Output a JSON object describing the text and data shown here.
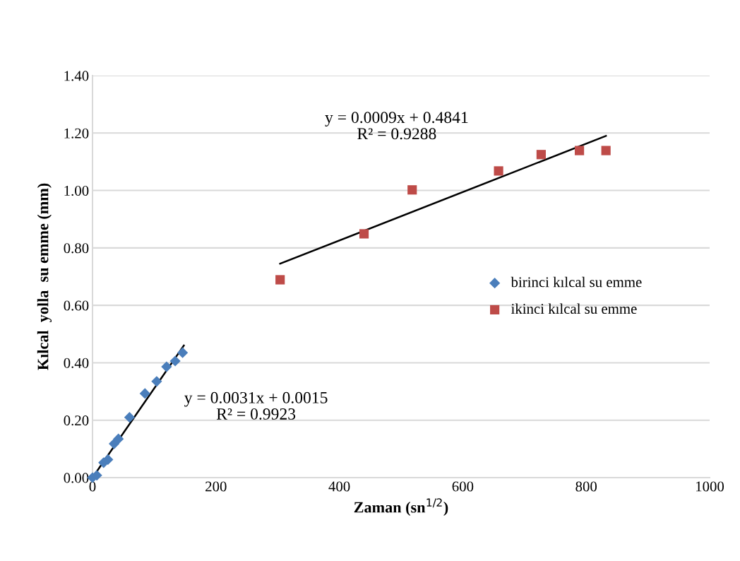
{
  "chart_data": {
    "type": "scatter",
    "xlabel": "Zaman (sn$^{1/2}$)",
    "ylabel": "Kılcal  yolla  su emme (mm)",
    "series": [
      {
        "name": "birinci kılcal su emme",
        "color": "#4a7ebb",
        "marker": "diamond",
        "x": [
          0,
          7,
          18,
          25,
          35,
          42,
          60,
          85,
          104,
          120,
          134,
          146
        ],
        "values": [
          0,
          0.008,
          0.052,
          0.063,
          0.118,
          0.135,
          0.21,
          0.293,
          0.335,
          0.386,
          0.406,
          0.435
        ]
      },
      {
        "name": "ikinci kılcal su emme",
        "color": "#be4b48",
        "marker": "square",
        "x": [
          304,
          440,
          518,
          658,
          727,
          789,
          832
        ],
        "values": [
          0.689,
          0.849,
          1.002,
          1.068,
          1.125,
          1.139,
          1.139
        ]
      },
      {
        "type": "line",
        "color": "#000000",
        "marker": "none",
        "x": [
          0,
          148
        ],
        "values": [
          0,
          0.46
        ]
      },
      {
        "type": "line",
        "color": "#000000",
        "marker": "none",
        "x": [
          304,
          832
        ],
        "values": [
          0.745,
          1.19
        ]
      }
    ],
    "annotations": [
      "y = 0.0031x + 0.0015\nR² = 0.9923",
      "y = 0.0009x + 0.4841\nR² = 0.9288"
    ],
    "xlim": [
      0,
      1000
    ],
    "xticks": [
      0,
      200,
      400,
      600,
      800,
      1000
    ],
    "ylim": [
      0,
      1.4
    ],
    "yticks": [
      {
        "value": 0,
        "label": "0.00"
      },
      {
        "value": 0.2,
        "label": "0.20"
      },
      {
        "value": 0.4,
        "label": "0.40"
      },
      {
        "value": 0.6,
        "label": "0.60"
      },
      {
        "value": 0.8,
        "label": "0.80"
      },
      {
        "value": 1.0,
        "label": "1.00"
      },
      {
        "value": 1.2,
        "label": "1.20"
      },
      {
        "value": 1.4,
        "label": "1.40"
      }
    ],
    "grid": "y",
    "legend": "right"
  }
}
